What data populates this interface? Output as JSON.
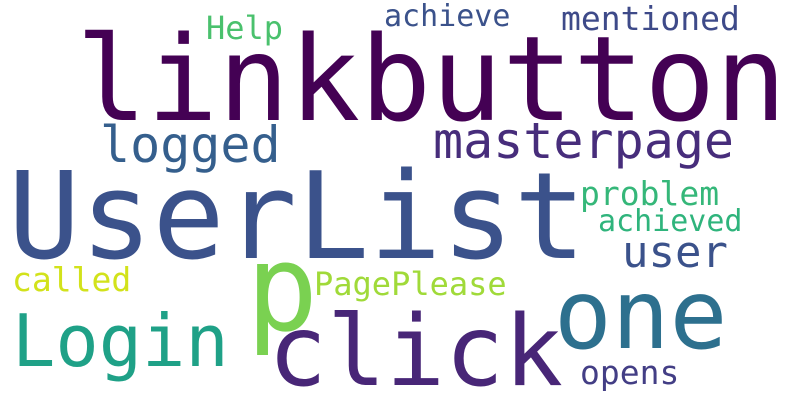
{
  "words": {
    "linkbutton": {
      "text": "linkbutton",
      "color": "#440154"
    },
    "userlist": {
      "text": "UserList",
      "color": "#3b528b"
    },
    "click": {
      "text": "click",
      "color": "#482677"
    },
    "one": {
      "text": "one",
      "color": "#2d708e"
    },
    "p": {
      "text": "p",
      "color": "#7ad151"
    },
    "login": {
      "text": "Login",
      "color": "#1fa187"
    },
    "masterpage": {
      "text": "masterpage",
      "color": "#472d7b"
    },
    "logged": {
      "text": "logged",
      "color": "#355f8d"
    },
    "user": {
      "text": "user",
      "color": "#3b528b"
    },
    "mentioned": {
      "text": "mentioned",
      "color": "#3e4a89"
    },
    "achieve": {
      "text": "achieve",
      "color": "#3b528b"
    },
    "help": {
      "text": "Help",
      "color": "#4ac16d"
    },
    "problem": {
      "text": "problem",
      "color": "#35b779"
    },
    "achieved": {
      "text": "achieved",
      "color": "#2fb47c"
    },
    "pageplease": {
      "text": "PagePlease",
      "color": "#a0da39"
    },
    "called": {
      "text": "called",
      "color": "#d2e21b"
    },
    "opens": {
      "text": "opens",
      "color": "#433e85"
    }
  }
}
